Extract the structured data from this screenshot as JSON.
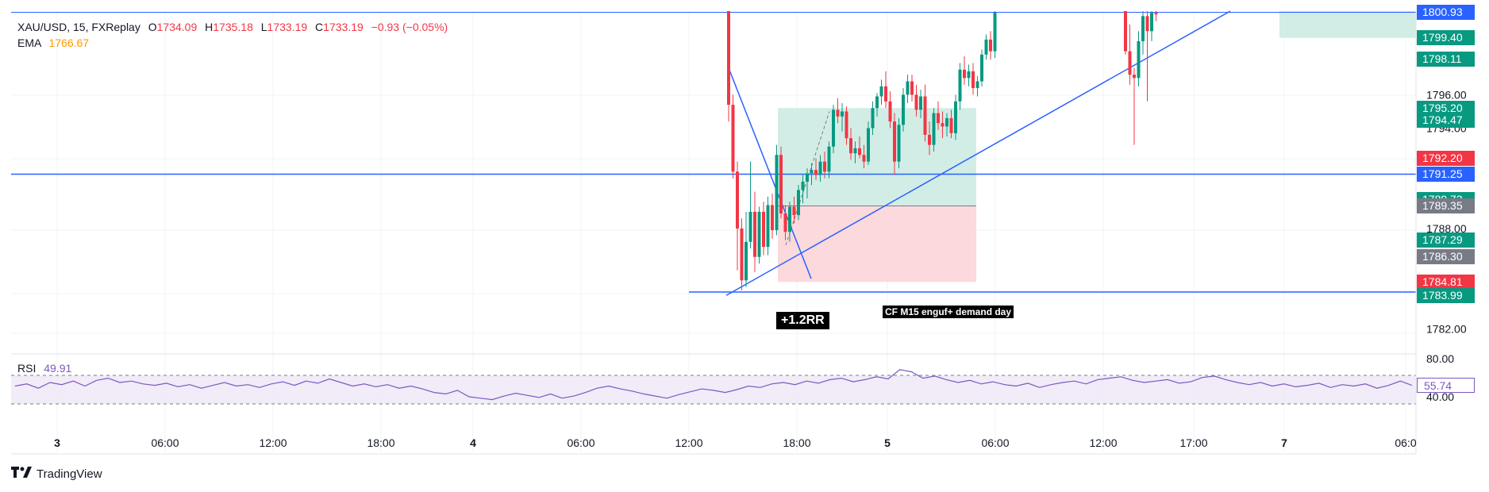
{
  "legend": {
    "symbol": "XAU/USD, 15, FXReplay",
    "o_label": "O",
    "o_value": "1734.09",
    "h_label": "H",
    "h_value": "1735.18",
    "l_label": "L",
    "l_value": "1733.19",
    "c_label": "C",
    "c_value": "1733.19",
    "change": "−0.93 (−0.05%)",
    "ema_label": "EMA",
    "ema_value": "1766.67"
  },
  "rsi_legend": {
    "label": "RSI",
    "value": "49.91"
  },
  "brand": {
    "name": "TradingView"
  },
  "annotations": {
    "rr": "+1.2RR",
    "note": "CF M15 enguf+ demand day"
  },
  "colors": {
    "up": "#089981",
    "down": "#f23645",
    "line": "#2962ff",
    "rsi": "#7e57c2",
    "target_zone": "#d1ede6",
    "stop_zone": "#fcd9dc"
  },
  "chart_data": {
    "type": "candlestick",
    "title": "",
    "price_range": [
      1780.5,
      1801.0
    ],
    "price_axis_labels": [
      "1796.00",
      "1794.00",
      "1788.00",
      "1782.00"
    ],
    "price_tags": [
      {
        "value": "1800.93",
        "color": "blue"
      },
      {
        "value": "1799.40",
        "color": "green"
      },
      {
        "value": "1798.11",
        "color": "green"
      },
      {
        "value": "1795.20",
        "color": "green"
      },
      {
        "value": "1794.47",
        "color": "green"
      },
      {
        "value": "1792.20",
        "color": "red"
      },
      {
        "value": "1791.25",
        "color": "blue"
      },
      {
        "value": "1789.73",
        "color": "green"
      },
      {
        "value": "1789.35",
        "color": "gray"
      },
      {
        "value": "1787.29",
        "color": "green"
      },
      {
        "value": "1786.30",
        "color": "gray"
      },
      {
        "value": "1784.81",
        "color": "red"
      },
      {
        "value": "1783.99",
        "color": "green"
      }
    ],
    "time_labels": [
      "3",
      "06:00",
      "12:00",
      "18:00",
      "4",
      "06:00",
      "12:00",
      "18:00",
      "5",
      "06:00",
      "12:00",
      "17:00",
      "7",
      "06:0"
    ],
    "horizontal_lines": [
      1800.93,
      1791.25,
      1784.2
    ],
    "candles": [
      [
        1801.0,
        1801.0,
        1794.4,
        1795.4
      ],
      [
        1795.4,
        1796.0,
        1791.0,
        1791.4
      ],
      [
        1791.4,
        1792.0,
        1785.5,
        1788.0
      ],
      [
        1788.0,
        1788.6,
        1784.3,
        1784.9
      ],
      [
        1784.9,
        1789.0,
        1784.5,
        1787.2
      ],
      [
        1787.2,
        1792.0,
        1786.8,
        1789.0
      ],
      [
        1789.0,
        1790.2,
        1785.4,
        1786.3
      ],
      [
        1786.3,
        1789.3,
        1785.9,
        1789.0
      ],
      [
        1789.0,
        1789.6,
        1786.4,
        1786.9
      ],
      [
        1786.9,
        1789.9,
        1786.4,
        1789.4
      ],
      [
        1789.4,
        1790.1,
        1787.4,
        1787.9
      ],
      [
        1787.9,
        1793.0,
        1787.6,
        1792.4
      ],
      [
        1792.4,
        1792.9,
        1788.6,
        1788.9
      ],
      [
        1788.9,
        1789.4,
        1787.3,
        1787.8
      ],
      [
        1787.8,
        1789.6,
        1787.2,
        1789.3
      ],
      [
        1789.3,
        1789.9,
        1788.3,
        1788.8
      ],
      [
        1788.8,
        1790.6,
        1788.5,
        1790.3
      ],
      [
        1790.3,
        1791.2,
        1789.5,
        1790.8
      ],
      [
        1790.8,
        1791.6,
        1789.8,
        1791.3
      ],
      [
        1791.3,
        1791.9,
        1790.6,
        1791.5
      ],
      [
        1791.5,
        1792.2,
        1790.9,
        1791.2
      ],
      [
        1791.2,
        1792.4,
        1790.8,
        1792.0
      ],
      [
        1792.0,
        1792.6,
        1791.0,
        1791.4
      ],
      [
        1791.4,
        1793.2,
        1791.0,
        1792.9
      ],
      [
        1792.9,
        1795.4,
        1792.5,
        1795.1
      ],
      [
        1795.1,
        1795.8,
        1794.3,
        1794.7
      ],
      [
        1794.7,
        1795.5,
        1793.8,
        1795.0
      ],
      [
        1795.0,
        1795.3,
        1793.0,
        1793.4
      ],
      [
        1793.4,
        1794.0,
        1792.1,
        1792.5
      ],
      [
        1792.5,
        1793.2,
        1791.9,
        1792.8
      ],
      [
        1792.8,
        1793.5,
        1792.2,
        1792.4
      ],
      [
        1792.4,
        1793.0,
        1791.6,
        1792.0
      ],
      [
        1792.0,
        1794.4,
        1791.8,
        1794.0
      ],
      [
        1794.0,
        1795.6,
        1793.6,
        1795.2
      ],
      [
        1795.2,
        1796.1,
        1794.7,
        1795.9
      ],
      [
        1795.9,
        1796.9,
        1795.4,
        1796.5
      ],
      [
        1796.5,
        1797.4,
        1795.2,
        1795.6
      ],
      [
        1795.6,
        1796.2,
        1794.0,
        1794.4
      ],
      [
        1794.4,
        1794.9,
        1791.2,
        1792.0
      ],
      [
        1792.0,
        1794.6,
        1791.6,
        1794.2
      ],
      [
        1794.2,
        1796.4,
        1793.8,
        1796.0
      ],
      [
        1796.0,
        1797.2,
        1795.5,
        1796.8
      ],
      [
        1796.8,
        1797.2,
        1795.6,
        1796.0
      ],
      [
        1796.0,
        1796.6,
        1794.7,
        1795.1
      ],
      [
        1795.1,
        1796.3,
        1794.6,
        1795.9
      ],
      [
        1795.9,
        1796.6,
        1793.2,
        1793.6
      ],
      [
        1793.6,
        1794.4,
        1792.4,
        1793.0
      ],
      [
        1793.0,
        1795.2,
        1792.6,
        1794.9
      ],
      [
        1794.9,
        1795.6,
        1793.9,
        1794.3
      ],
      [
        1794.3,
        1795.0,
        1793.4,
        1794.1
      ],
      [
        1794.1,
        1794.9,
        1793.5,
        1794.6
      ],
      [
        1794.6,
        1795.1,
        1793.4,
        1793.7
      ],
      [
        1793.7,
        1796.0,
        1793.3,
        1795.6
      ],
      [
        1795.6,
        1797.9,
        1795.1,
        1797.5
      ],
      [
        1797.5,
        1798.3,
        1796.6,
        1797.0
      ],
      [
        1797.0,
        1797.8,
        1796.5,
        1797.4
      ],
      [
        1797.4,
        1797.9,
        1796.0,
        1796.4
      ],
      [
        1796.4,
        1797.1,
        1795.9,
        1796.8
      ],
      [
        1796.8,
        1798.7,
        1796.5,
        1798.4
      ],
      [
        1798.4,
        1799.6,
        1798.1,
        1799.3
      ],
      [
        1799.3,
        1799.8,
        1798.1,
        1798.6
      ],
      [
        1798.6,
        1801.0,
        1798.2,
        1800.9
      ]
    ],
    "candles_right": [
      [
        1801.0,
        1801.0,
        1798.4,
        1798.6
      ],
      [
        1798.6,
        1800.2,
        1796.6,
        1797.2
      ],
      [
        1797.2,
        1797.6,
        1793.0,
        1797.0
      ],
      [
        1797.0,
        1799.8,
        1796.5,
        1799.2
      ],
      [
        1799.2,
        1801.0,
        1798.4,
        1800.7
      ],
      [
        1800.7,
        1801.0,
        1795.6,
        1799.8
      ],
      [
        1799.8,
        1801.0,
        1799.2,
        1800.9
      ],
      [
        1800.9,
        1801.0,
        1800.4,
        1800.8
      ]
    ],
    "rsi": {
      "ylim": [
        0,
        100
      ],
      "levels": [
        70,
        30
      ],
      "axis_labels": [
        "80.00",
        "40.00"
      ],
      "current": "55.74",
      "values": [
        55,
        58,
        52,
        60,
        57,
        62,
        55,
        63,
        66,
        60,
        62,
        58,
        56,
        59,
        54,
        57,
        52,
        56,
        60,
        55,
        57,
        53,
        58,
        61,
        56,
        62,
        59,
        65,
        60,
        55,
        58,
        54,
        57,
        52,
        55,
        51,
        46,
        44,
        49,
        40,
        38,
        36,
        41,
        45,
        42,
        39,
        44,
        38,
        41,
        46,
        52,
        55,
        51,
        48,
        44,
        41,
        38,
        43,
        47,
        51,
        49,
        46,
        50,
        55,
        53,
        58,
        60,
        57,
        62,
        59,
        64,
        66,
        61,
        64,
        68,
        65,
        78,
        75,
        66,
        69,
        64,
        60,
        63,
        58,
        61,
        57,
        55,
        59,
        53,
        57,
        60,
        62,
        58,
        64,
        66,
        68,
        63,
        60,
        62,
        64,
        59,
        61,
        67,
        69,
        64,
        60,
        57,
        60,
        55,
        58,
        54,
        56,
        59,
        53,
        57,
        55,
        58,
        52,
        56,
        62,
        56
      ]
    }
  }
}
